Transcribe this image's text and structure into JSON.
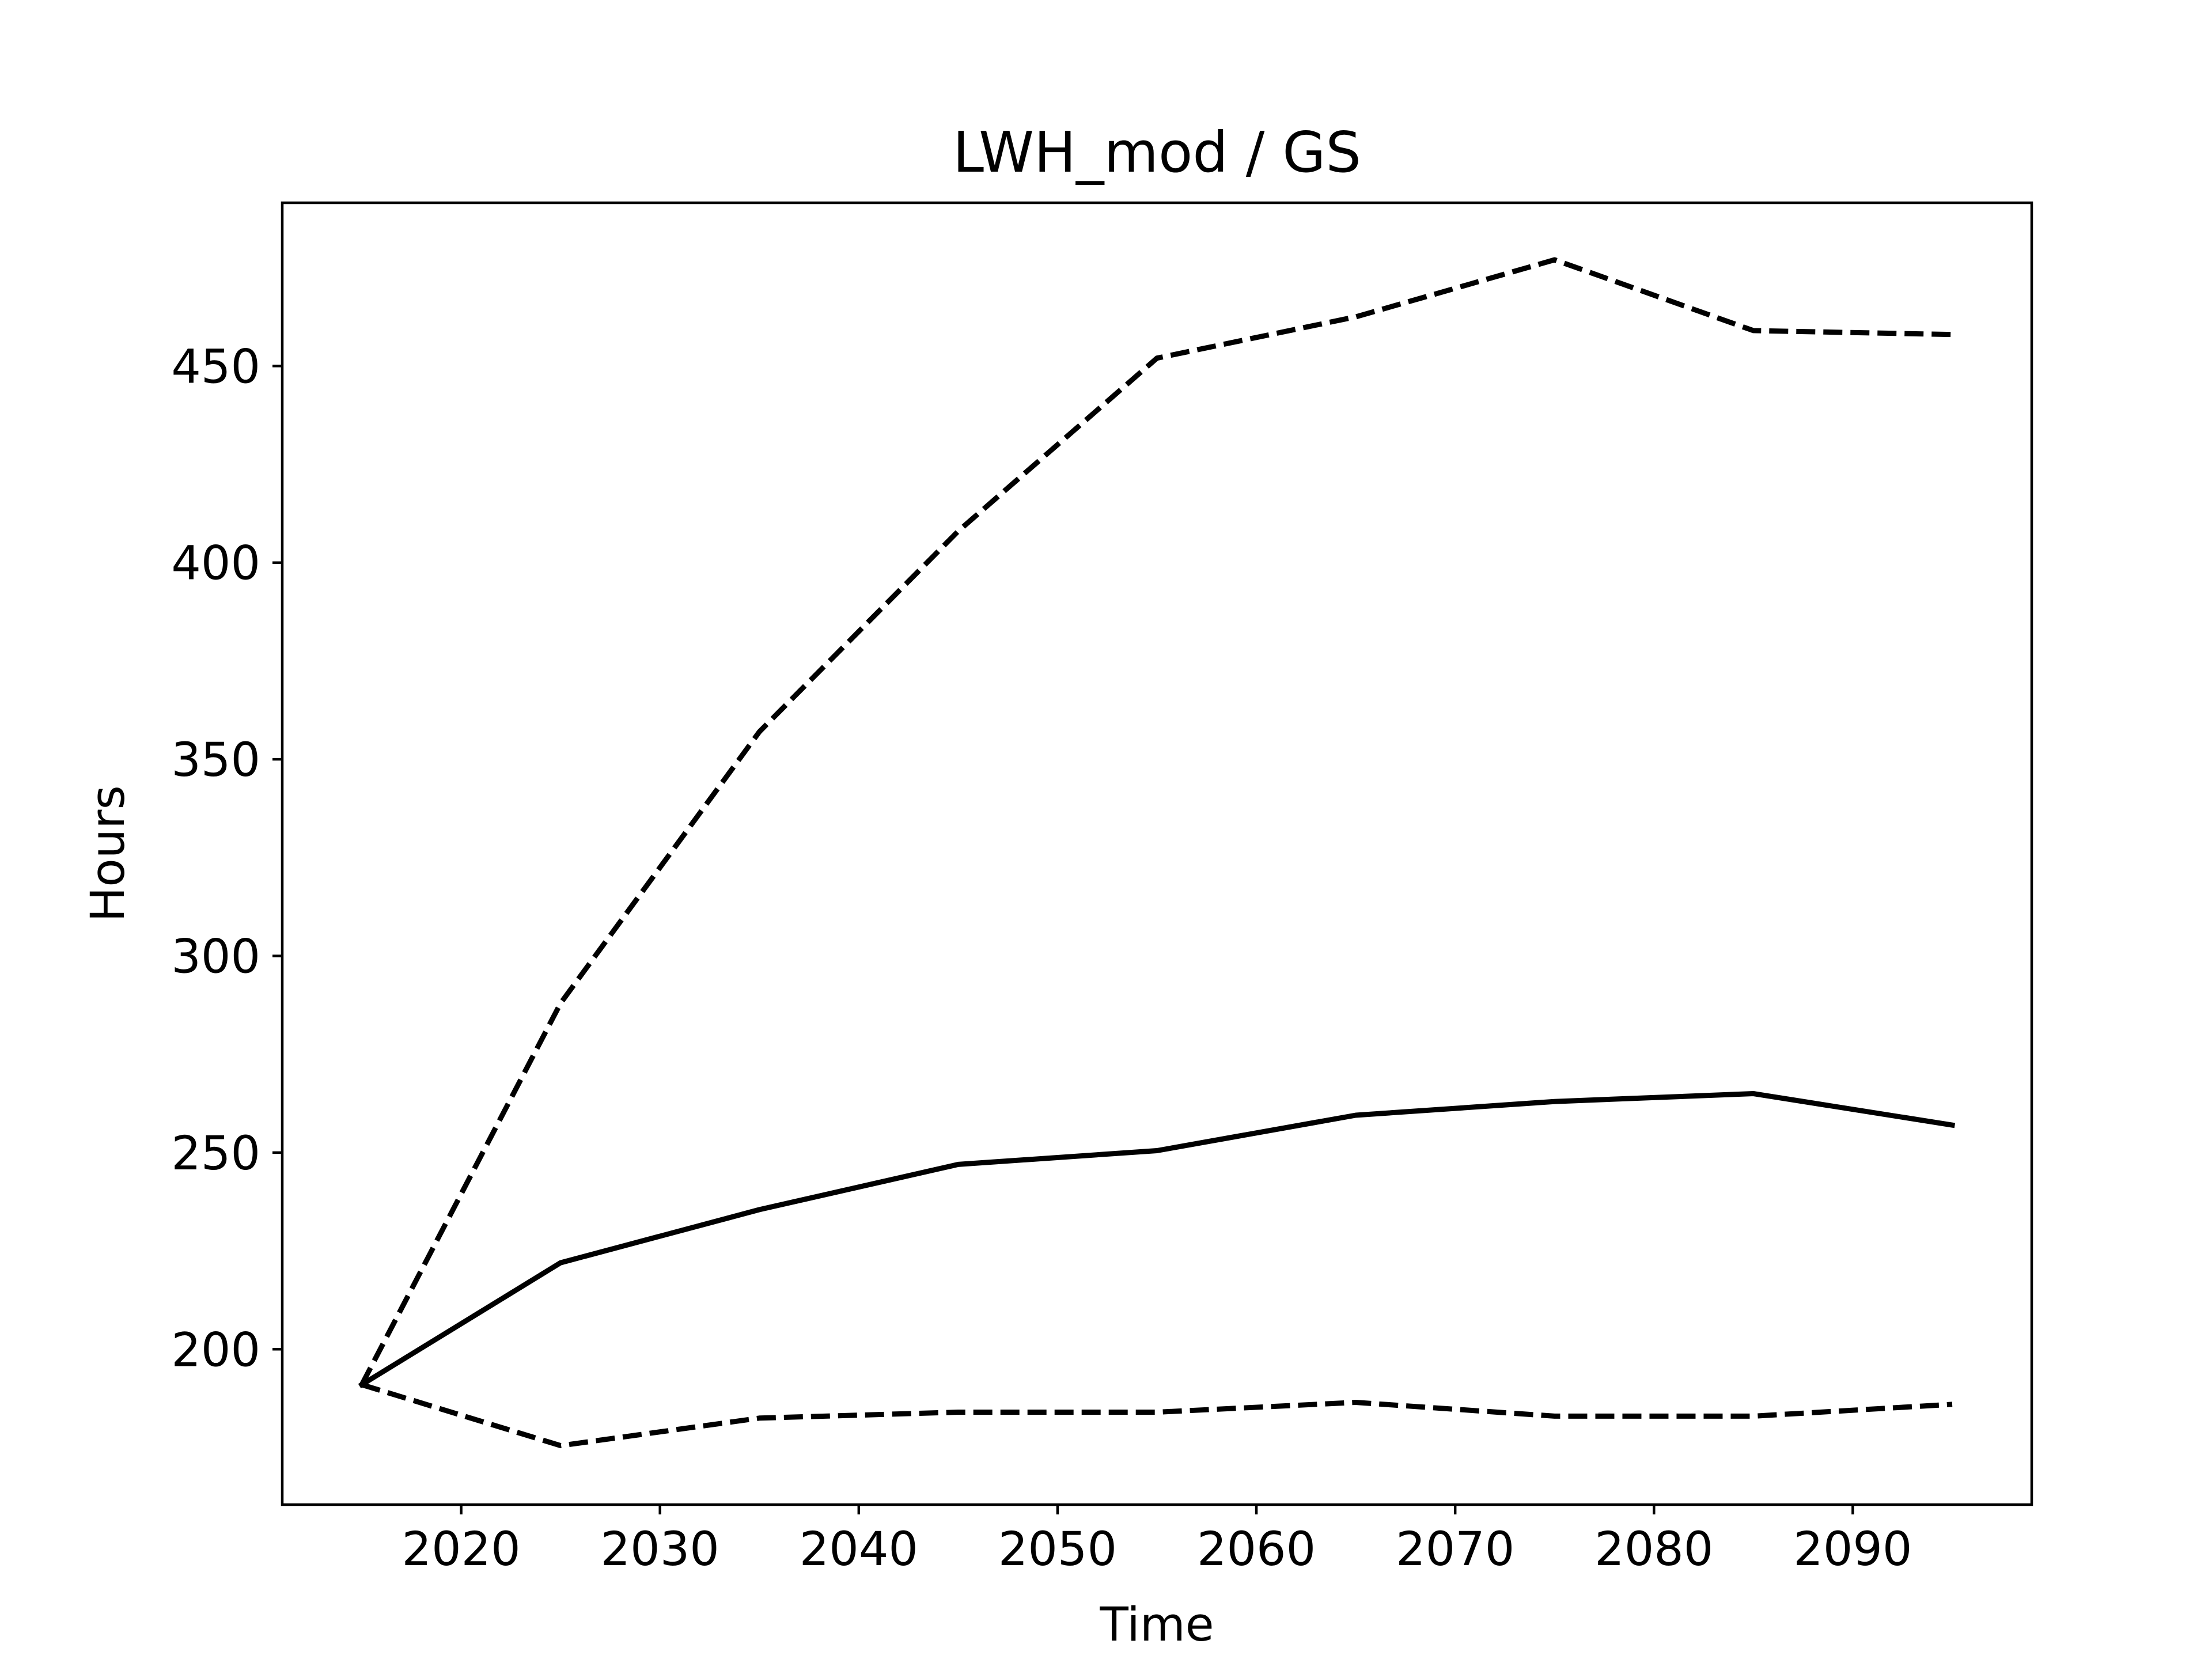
{
  "chart_data": {
    "type": "line",
    "title": "LWH_mod / GS",
    "xlabel": "Time",
    "ylabel": "Hours",
    "xlim": [
      2011,
      2099
    ],
    "ylim": [
      160.5,
      491.5
    ],
    "xticks": [
      2020,
      2030,
      2040,
      2050,
      2060,
      2070,
      2080,
      2090
    ],
    "yticks": [
      200,
      250,
      300,
      350,
      400,
      450
    ],
    "grid": false,
    "legend": "none",
    "x": [
      2015,
      2025,
      2035,
      2045,
      2055,
      2065,
      2075,
      2085,
      2095
    ],
    "series": [
      {
        "style": "solid",
        "color": "#000000",
        "values": [
          191,
          222,
          235.5,
          247,
          250.5,
          259.5,
          263,
          265,
          257
        ]
      },
      {
        "style": "dashed",
        "color": "#000000",
        "values": [
          191,
          288,
          357,
          408,
          452,
          462.5,
          477,
          459,
          458
        ]
      },
      {
        "style": "dashed",
        "color": "#000000",
        "values": [
          191,
          175.5,
          182.5,
          184,
          184,
          186.5,
          183,
          183,
          186
        ]
      }
    ]
  }
}
